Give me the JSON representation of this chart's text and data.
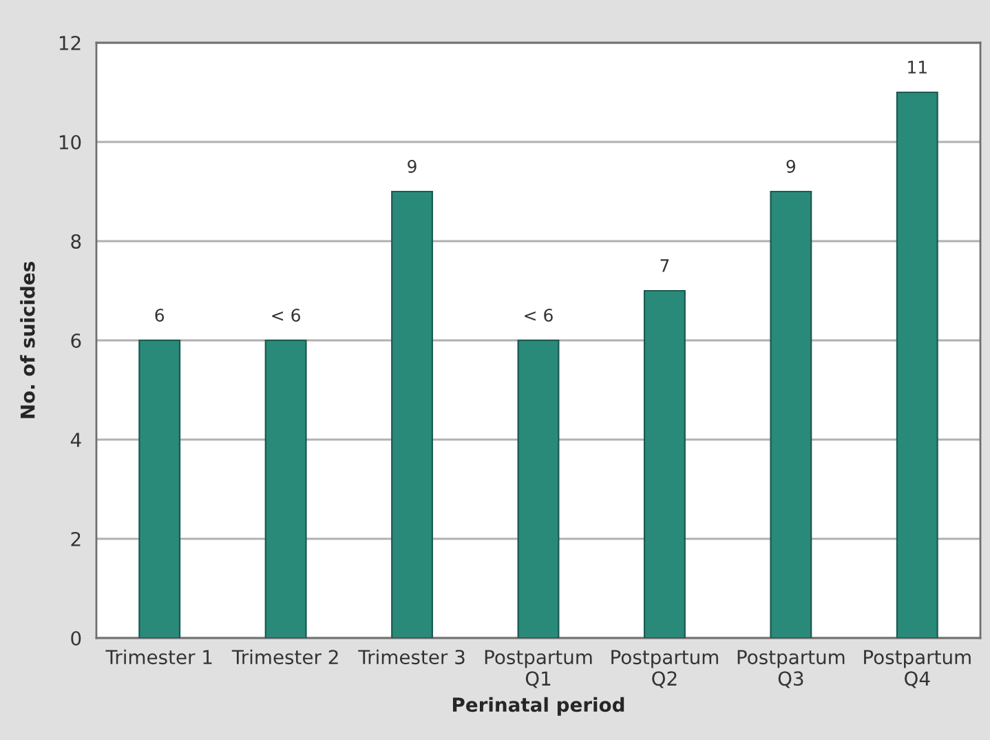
{
  "chart_data": {
    "type": "bar",
    "xlabel": "Perinatal period",
    "ylabel": "No. of suicides",
    "categories": [
      "Trimester 1",
      "Trimester 2",
      "Trimester 3",
      "Postpartum\nQ1",
      "Postpartum\nQ2",
      "Postpartum\nQ3",
      "Postpartum\nQ4"
    ],
    "values": [
      6,
      6,
      9,
      6,
      7,
      9,
      11
    ],
    "value_labels": [
      "6",
      "< 6",
      "9",
      "< 6",
      "7",
      "9",
      "11"
    ],
    "color": "#2a8a7a",
    "ylim": [
      0,
      12
    ],
    "yticks": [
      0,
      2,
      4,
      6,
      8,
      10,
      12
    ],
    "grid": "y",
    "legend": false
  }
}
